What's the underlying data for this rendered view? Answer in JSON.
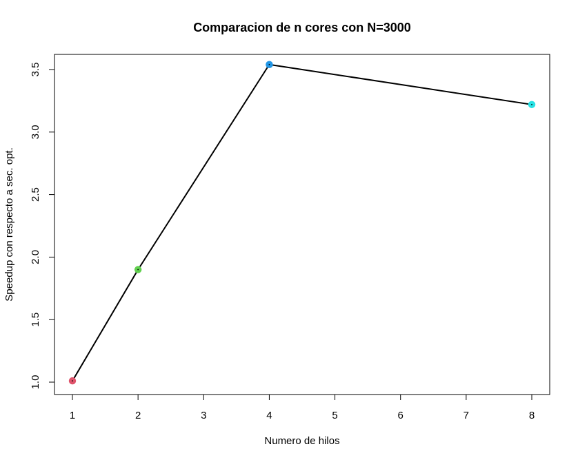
{
  "chart_data": {
    "type": "line",
    "title": "Comparacion de n cores con N=3000",
    "xlabel": "Numero de hilos",
    "ylabel": "Speedup con respecto a sec. opt.",
    "x_ticks": [
      "1",
      "2",
      "3",
      "4",
      "5",
      "6",
      "7",
      "8"
    ],
    "y_ticks": [
      "1.0",
      "1.5",
      "2.0",
      "2.5",
      "3.0",
      "3.5"
    ],
    "xlim": [
      1,
      8
    ],
    "ylim": [
      1.0,
      3.5
    ],
    "grid": false,
    "line_color": "#000000",
    "x": [
      1,
      2,
      4,
      8
    ],
    "y": [
      1.01,
      1.9,
      3.54,
      3.22
    ],
    "point_colors": [
      "#DF536B",
      "#61D04F",
      "#2297E6",
      "#28E2E5"
    ]
  }
}
